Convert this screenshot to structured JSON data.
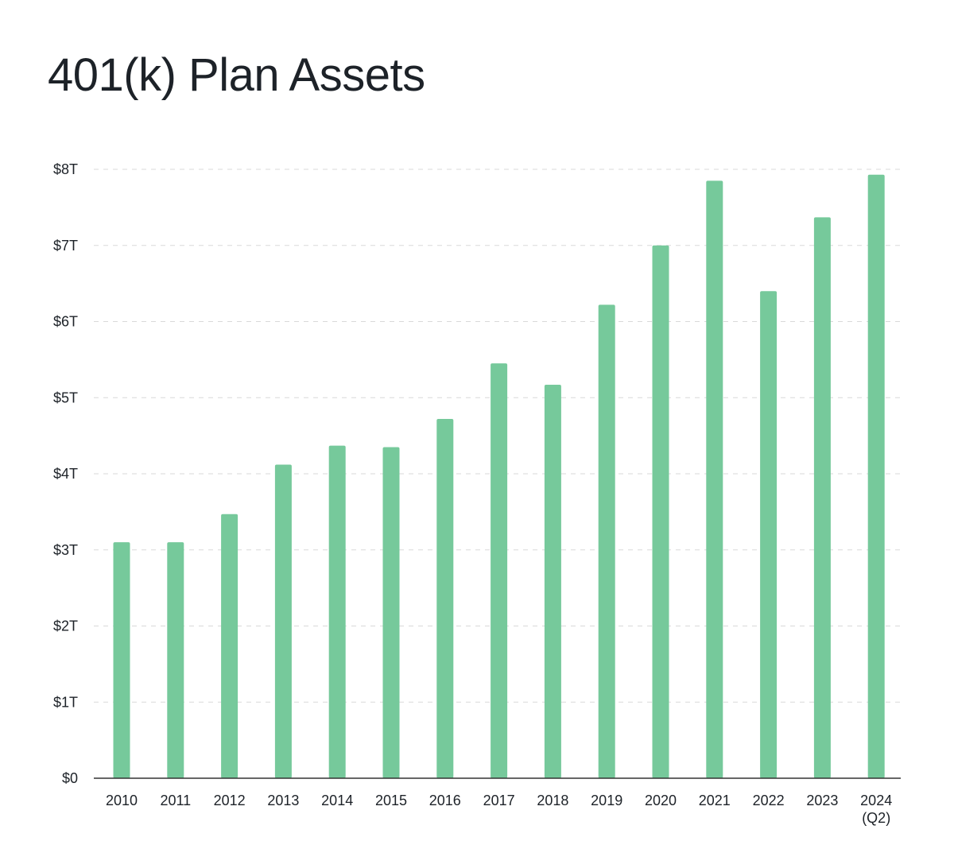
{
  "title": "401(k) Plan Assets",
  "colors": {
    "bar": "#76c99b",
    "text": "#1d2228",
    "grid": "#d9d9d9",
    "axis": "#333333"
  },
  "chart_data": {
    "type": "bar",
    "title": "401(k) Plan Assets",
    "xlabel": "",
    "ylabel": "",
    "categories": [
      "2010",
      "2011",
      "2012",
      "2013",
      "2014",
      "2015",
      "2016",
      "2017",
      "2018",
      "2019",
      "2020",
      "2021",
      "2022",
      "2023",
      "2024"
    ],
    "category_sublabels": [
      "",
      "",
      "",
      "",
      "",
      "",
      "",
      "",
      "",
      "",
      "",
      "",
      "",
      "",
      "(Q2)"
    ],
    "values": [
      3.1,
      3.1,
      3.47,
      4.12,
      4.37,
      4.35,
      4.72,
      5.45,
      5.17,
      6.22,
      7.0,
      7.85,
      6.4,
      7.37,
      7.93
    ],
    "unit": "trillion USD",
    "ylim": [
      0,
      8
    ],
    "yticks": [
      0,
      1,
      2,
      3,
      4,
      5,
      6,
      7,
      8
    ],
    "ytick_labels": [
      "$0",
      "$1T",
      "$2T",
      "$3T",
      "$4T",
      "$5T",
      "$6T",
      "$7T",
      "$8T"
    ],
    "grid": true,
    "grid_style": "dashed",
    "legend": false
  }
}
